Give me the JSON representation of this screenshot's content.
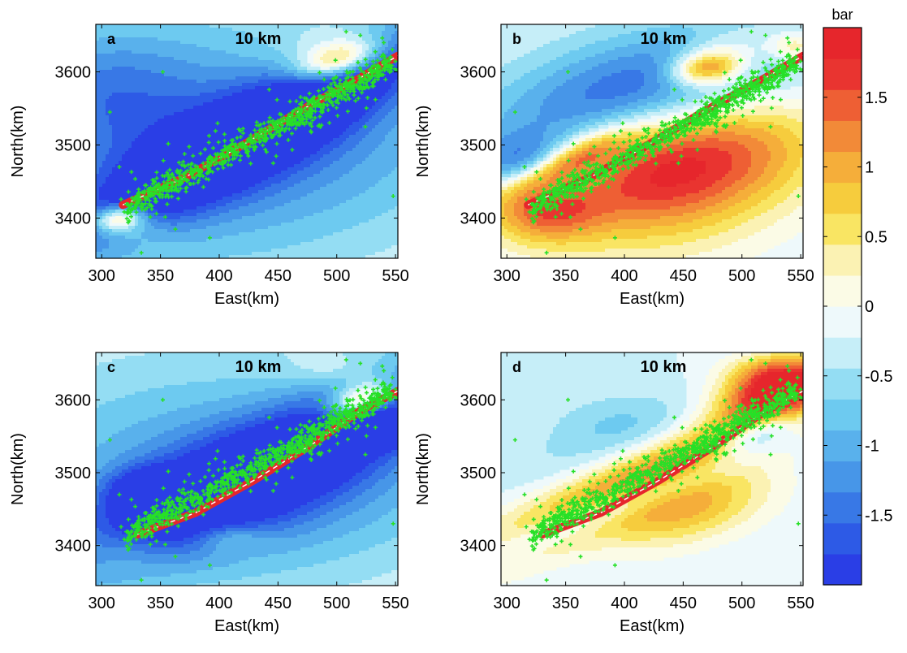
{
  "chart_data": [
    {
      "type": "heatmap",
      "panel_label": "a",
      "depth_label": "10 km",
      "xlabel": "East(km)",
      "ylabel": "North(km)",
      "xlim": [
        295,
        552
      ],
      "ylim": [
        3345,
        3665
      ],
      "xticks": [
        300,
        350,
        400,
        450,
        500,
        550
      ],
      "yticks": [
        3400,
        3500,
        3600
      ],
      "fault_trace": [
        [
          318,
          3418
        ],
        [
          370,
          3455
        ],
        [
          420,
          3500
        ],
        [
          470,
          3548
        ],
        [
          520,
          3592
        ],
        [
          552,
          3622
        ]
      ],
      "field": [
        {
          "x": 438,
          "y": 3522,
          "sx": 170,
          "sy": 34,
          "rot": 42,
          "v": -2.0
        },
        {
          "x": 360,
          "y": 3530,
          "sx": 125,
          "sy": 95,
          "rot": 30,
          "v": -0.9
        },
        {
          "x": 470,
          "y": 3470,
          "sx": 140,
          "sy": 85,
          "rot": 30,
          "v": -0.75
        },
        {
          "x": 300,
          "y": 3580,
          "sx": 55,
          "sy": 60,
          "rot": 0,
          "v": -0.7
        },
        {
          "x": 500,
          "y": 3615,
          "sx": 28,
          "sy": 16,
          "rot": 30,
          "v": 2.2
        },
        {
          "x": 488,
          "y": 3640,
          "sx": 38,
          "sy": 20,
          "rot": 20,
          "v": 0.5
        },
        {
          "x": 315,
          "y": 3400,
          "sx": 16,
          "sy": 12,
          "rot": 20,
          "v": 2.0
        },
        {
          "x": 327,
          "y": 3382,
          "sx": 22,
          "sy": 16,
          "rot": 0,
          "v": 0.5
        }
      ]
    },
    {
      "type": "heatmap",
      "panel_label": "b",
      "depth_label": "10 km",
      "xlabel": "East(km)",
      "ylabel": "North(km)",
      "xlim": [
        295,
        552
      ],
      "ylim": [
        3345,
        3665
      ],
      "xticks": [
        300,
        350,
        400,
        450,
        500,
        550
      ],
      "yticks": [
        3400,
        3500,
        3600
      ],
      "fault_trace": [
        [
          318,
          3418
        ],
        [
          370,
          3455
        ],
        [
          420,
          3500
        ],
        [
          470,
          3548
        ],
        [
          520,
          3592
        ],
        [
          552,
          3622
        ]
      ],
      "field": [
        {
          "x": 440,
          "y": 3480,
          "sx": 75,
          "sy": 62,
          "rot": 30,
          "v": 2.2
        },
        {
          "x": 330,
          "y": 3415,
          "sx": 32,
          "sy": 32,
          "rot": 0,
          "v": 1.5
        },
        {
          "x": 400,
          "y": 3420,
          "sx": 95,
          "sy": 75,
          "rot": 20,
          "v": 0.5
        },
        {
          "x": 350,
          "y": 3475,
          "sx": 40,
          "sy": 14,
          "rot": 40,
          "v": 1.6
        },
        {
          "x": 405,
          "y": 3565,
          "sx": 95,
          "sy": 50,
          "rot": 30,
          "v": -2.0
        },
        {
          "x": 318,
          "y": 3470,
          "sx": 32,
          "sy": 30,
          "rot": 0,
          "v": -1.4
        },
        {
          "x": 470,
          "y": 3605,
          "sx": 22,
          "sy": 16,
          "rot": 20,
          "v": 2.2
        },
        {
          "x": 490,
          "y": 3635,
          "sx": 30,
          "sy": 20,
          "rot": 20,
          "v": 0.6
        },
        {
          "x": 545,
          "y": 3635,
          "sx": 16,
          "sy": 14,
          "rot": 0,
          "v": 0.9
        },
        {
          "x": 530,
          "y": 3500,
          "sx": 45,
          "sy": 45,
          "rot": 0,
          "v": 0.3
        }
      ]
    },
    {
      "type": "heatmap",
      "panel_label": "c",
      "depth_label": "10 km",
      "xlabel": "East(km)",
      "ylabel": "North(km)",
      "xlim": [
        295,
        552
      ],
      "ylim": [
        3345,
        3665
      ],
      "xticks": [
        300,
        350,
        400,
        450,
        500,
        550
      ],
      "yticks": [
        3400,
        3500,
        3600
      ],
      "fault_trace": [
        [
          330,
          3415
        ],
        [
          380,
          3445
        ],
        [
          430,
          3490
        ],
        [
          480,
          3540
        ],
        [
          520,
          3585
        ],
        [
          552,
          3612
        ]
      ],
      "field": [
        {
          "x": 445,
          "y": 3510,
          "sx": 160,
          "sy": 42,
          "rot": 38,
          "v": -2.0
        },
        {
          "x": 360,
          "y": 3530,
          "sx": 120,
          "sy": 90,
          "rot": 20,
          "v": -0.75
        },
        {
          "x": 480,
          "y": 3460,
          "sx": 120,
          "sy": 75,
          "rot": 25,
          "v": -0.75
        },
        {
          "x": 340,
          "y": 3470,
          "sx": 22,
          "sy": 22,
          "rot": 0,
          "v": -1.5
        },
        {
          "x": 520,
          "y": 3600,
          "sx": 22,
          "sy": 14,
          "rot": 40,
          "v": 2.0
        },
        {
          "x": 540,
          "y": 3560,
          "sx": 18,
          "sy": 14,
          "rot": 0,
          "v": -2.0
        },
        {
          "x": 410,
          "y": 3410,
          "sx": 20,
          "sy": 14,
          "rot": 0,
          "v": 0.6
        },
        {
          "x": 318,
          "y": 3390,
          "sx": 26,
          "sy": 20,
          "rot": 0,
          "v": 0.4
        },
        {
          "x": 500,
          "y": 3640,
          "sx": 30,
          "sy": 16,
          "rot": 0,
          "v": 0.4
        }
      ]
    },
    {
      "type": "heatmap",
      "panel_label": "d",
      "depth_label": "10 km",
      "xlabel": "East(km)",
      "ylabel": "North(km)",
      "xlim": [
        295,
        552
      ],
      "ylim": [
        3345,
        3665
      ],
      "xticks": [
        300,
        350,
        400,
        450,
        500,
        550
      ],
      "yticks": [
        3400,
        3500,
        3600
      ],
      "fault_trace": [
        [
          330,
          3415
        ],
        [
          380,
          3445
        ],
        [
          430,
          3490
        ],
        [
          480,
          3540
        ],
        [
          520,
          3585
        ],
        [
          552,
          3612
        ]
      ],
      "field": [
        {
          "x": 440,
          "y": 3510,
          "sx": 150,
          "sy": 28,
          "rot": 38,
          "v": 2.0
        },
        {
          "x": 525,
          "y": 3615,
          "sx": 35,
          "sy": 25,
          "rot": 40,
          "v": 2.0
        },
        {
          "x": 455,
          "y": 3450,
          "sx": 55,
          "sy": 32,
          "rot": 30,
          "v": 1.2
        },
        {
          "x": 420,
          "y": 3540,
          "sx": 85,
          "sy": 38,
          "rot": 25,
          "v": -0.5
        },
        {
          "x": 395,
          "y": 3455,
          "sx": 95,
          "sy": 14,
          "rot": 32,
          "v": -1.2
        },
        {
          "x": 515,
          "y": 3555,
          "sx": 30,
          "sy": 14,
          "rot": 35,
          "v": -1.4
        },
        {
          "x": 395,
          "y": 3570,
          "sx": 40,
          "sy": 28,
          "rot": 0,
          "v": -0.3
        },
        {
          "x": 530,
          "y": 3640,
          "sx": 32,
          "sy": 18,
          "rot": 0,
          "v": 0.6
        }
      ]
    }
  ],
  "colorbar": {
    "label": "bar",
    "min": -2,
    "max": 2,
    "step": 0.25,
    "tick_values": [
      1.5,
      1,
      0.5,
      0,
      -0.5,
      -1,
      -1.5
    ],
    "tick_labels": [
      "1.5",
      "1",
      "0.5",
      "0",
      "-0.5",
      "-1",
      "-1.5"
    ],
    "colors": [
      "#2a3ee6",
      "#2d5ae6",
      "#3878e6",
      "#4796e8",
      "#59b1ec",
      "#6dcaf0",
      "#94ddf3",
      "#c6eef8",
      "#eef9fb",
      "#fbfbe6",
      "#fbf2b3",
      "#f9e563",
      "#f6cc3d",
      "#f5ae3a",
      "#f28a38",
      "#ee5f34",
      "#e93430",
      "#e6262c"
    ]
  },
  "events": {
    "count": 900,
    "color": "#27e027",
    "marker": "plus"
  },
  "axis_colors": {
    "frame": "#000000",
    "text": "#000000",
    "background": "#ffffff"
  }
}
